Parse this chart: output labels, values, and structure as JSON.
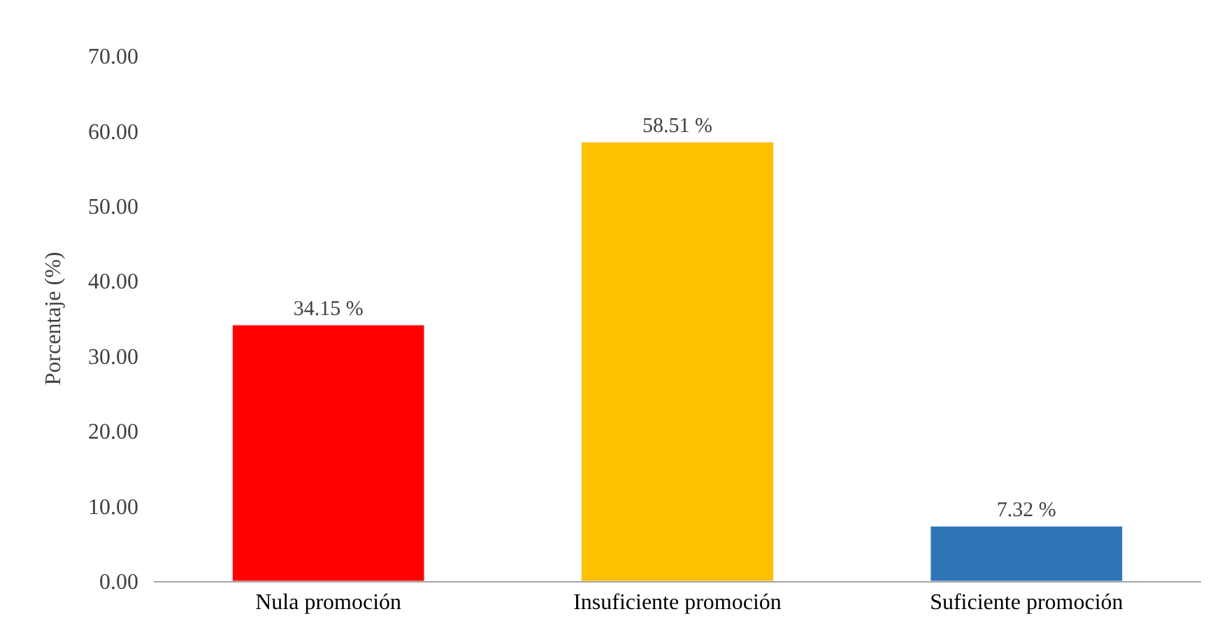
{
  "chart_data": {
    "type": "bar",
    "ylabel": "Porcentaje (%)",
    "categories": [
      "Nula promoción",
      "Insuficiente promoción",
      "Suficiente promoción"
    ],
    "values": [
      34.15,
      58.51,
      7.32
    ],
    "colors": [
      "#ff0000",
      "#ffc000",
      "#2e75b6"
    ],
    "value_labels": [
      "34.15 %",
      "58.51 %",
      "7.32 %"
    ],
    "yticks": [
      {
        "value": 0,
        "label": "0.00"
      },
      {
        "value": 10,
        "label": "10.00"
      },
      {
        "value": 20,
        "label": "20.00"
      },
      {
        "value": 30,
        "label": "30.00"
      },
      {
        "value": 40,
        "label": "40.00"
      },
      {
        "value": 50,
        "label": "50.00"
      },
      {
        "value": 60,
        "label": "60.00"
      },
      {
        "value": 70,
        "label": "70.00"
      }
    ],
    "ylim": [
      0,
      70
    ]
  }
}
